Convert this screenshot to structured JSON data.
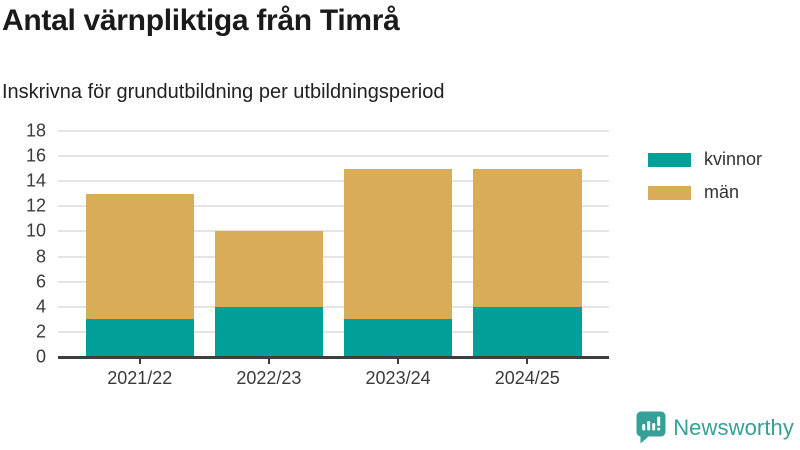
{
  "title": "Antal värnpliktiga från Timrå",
  "subtitle": "Inskrivna för grundutbildning per utbildningsperiod",
  "colors": {
    "kvinnor": "#00A099",
    "man": "#D9AC57",
    "axis": "#3e3e3e",
    "grid": "#e4e4e4",
    "text": "#3a3a3a",
    "title": "#1a1a1a",
    "brand": "#35A096",
    "background": "#ffffff"
  },
  "chart_data": {
    "type": "bar",
    "stacked": true,
    "title": "Antal värnpliktiga från Timrå",
    "subtitle": "Inskrivna för grundutbildning per utbildningsperiod",
    "categories": [
      "2021/22",
      "2022/23",
      "2023/24",
      "2024/25"
    ],
    "series": [
      {
        "name": "kvinnor",
        "color": "#00A099",
        "values": [
          3,
          4,
          3,
          4
        ]
      },
      {
        "name": "män",
        "color": "#D9AC57",
        "values": [
          10,
          6,
          12,
          11
        ]
      }
    ],
    "xlabel": "",
    "ylabel": "",
    "ylim": [
      0,
      18
    ],
    "yticks": [
      0,
      2,
      4,
      6,
      8,
      10,
      12,
      14,
      16,
      18
    ],
    "grid": true,
    "legend_position": "top-right"
  },
  "branding": {
    "name": "Newsworthy",
    "icon": "bar-chart-speech-bubble"
  }
}
